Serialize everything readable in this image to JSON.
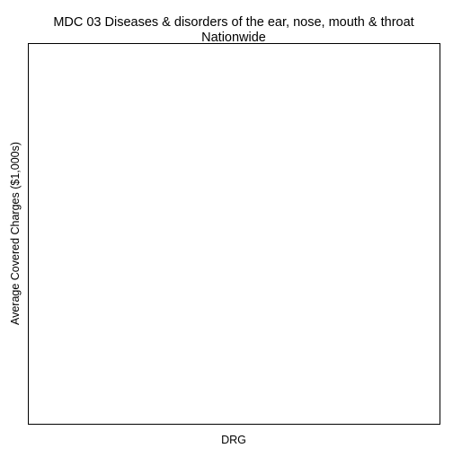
{
  "chart_data": {
    "type": "bar",
    "title": "MDC 03 Diseases & disorders of the ear, nose, mouth & throat",
    "subtitle": "Nationwide",
    "xlabel": "DRG",
    "ylabel": "Average Covered Charges ($1,000s)",
    "categories": [],
    "values": [],
    "grid": false,
    "legend": "none"
  },
  "colors": {
    "background": "#ffffff",
    "frame": "#000000",
    "text": "#000000"
  }
}
